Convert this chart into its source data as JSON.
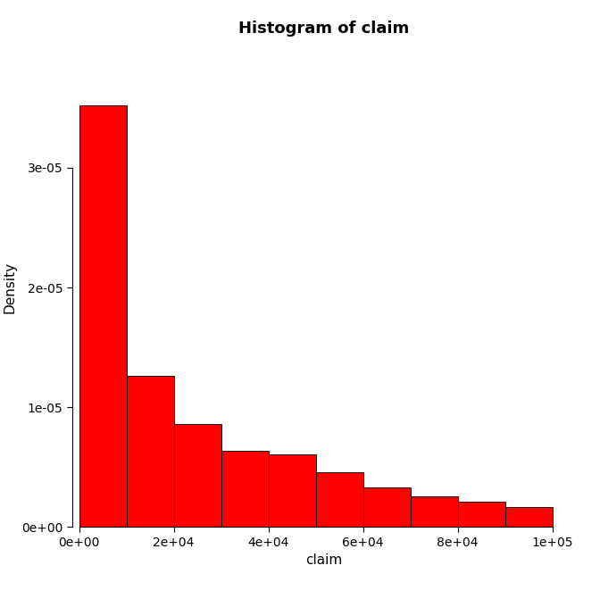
{
  "title": "Histogram of claim",
  "xlabel": "claim",
  "ylabel": "Density",
  "bar_color": "#FF0000",
  "edge_color": "#000000",
  "background_color": "#FFFFFF",
  "bin_edges": [
    0,
    10000,
    20000,
    30000,
    40000,
    50000,
    60000,
    70000,
    80000,
    90000,
    100000
  ],
  "densities": [
    3.52e-05,
    1.26e-05,
    8.6e-06,
    6.4e-06,
    6.1e-06,
    4.6e-06,
    3.3e-06,
    2.6e-06,
    2.1e-06,
    1.7e-06
  ],
  "ylim": [
    0,
    4e-05
  ],
  "xlim": [
    -1500,
    105000
  ],
  "yticks": [
    0,
    1e-05,
    2e-05,
    3e-05
  ],
  "xticks": [
    0,
    20000,
    40000,
    60000,
    80000,
    100000
  ],
  "title_fontsize": 13,
  "axis_label_fontsize": 11,
  "tick_fontsize": 10
}
